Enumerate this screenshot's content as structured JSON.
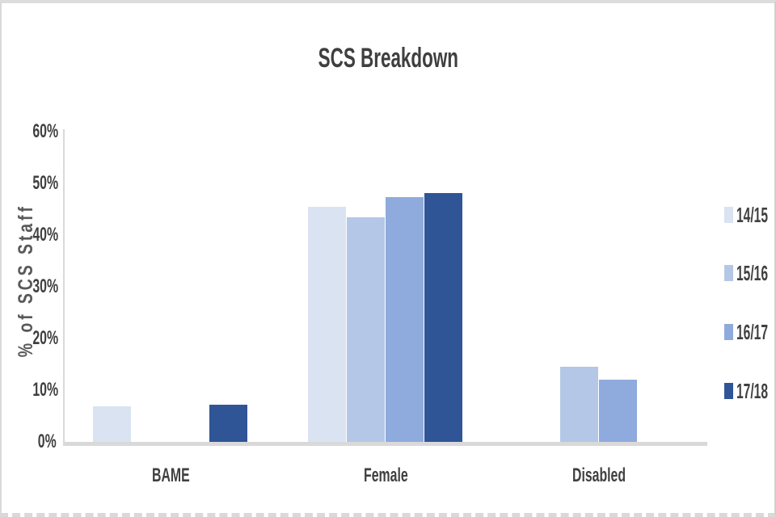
{
  "chart": {
    "title": "SCS Breakdown",
    "y_axis_title": "% of SCS Staff"
  },
  "chart_data": {
    "type": "bar",
    "title": "SCS Breakdown",
    "xlabel": "",
    "ylabel": "% of SCS Staff",
    "categories": [
      "BAME",
      "Female",
      "Disabled"
    ],
    "series": [
      {
        "name": "14/15",
        "color": "#DAE3F2",
        "values": [
          6.8,
          45.5,
          0
        ]
      },
      {
        "name": "15/16",
        "color": "#B4C7E7",
        "values": [
          0,
          43.5,
          14.5
        ]
      },
      {
        "name": "16/17",
        "color": "#8FAADC",
        "values": [
          0,
          47.4,
          12.0
        ]
      },
      {
        "name": "17/18",
        "color": "#2F5597",
        "values": [
          7.2,
          48.1,
          0
        ]
      }
    ],
    "ylim": [
      0,
      60
    ],
    "ytick_step": 10,
    "yticks": [
      "0%",
      "10%",
      "20%",
      "30%",
      "40%",
      "50%",
      "60%"
    ],
    "grid": false,
    "legend_position": "right",
    "axis_color": "#d9d9d9",
    "text_color": "#404040"
  }
}
